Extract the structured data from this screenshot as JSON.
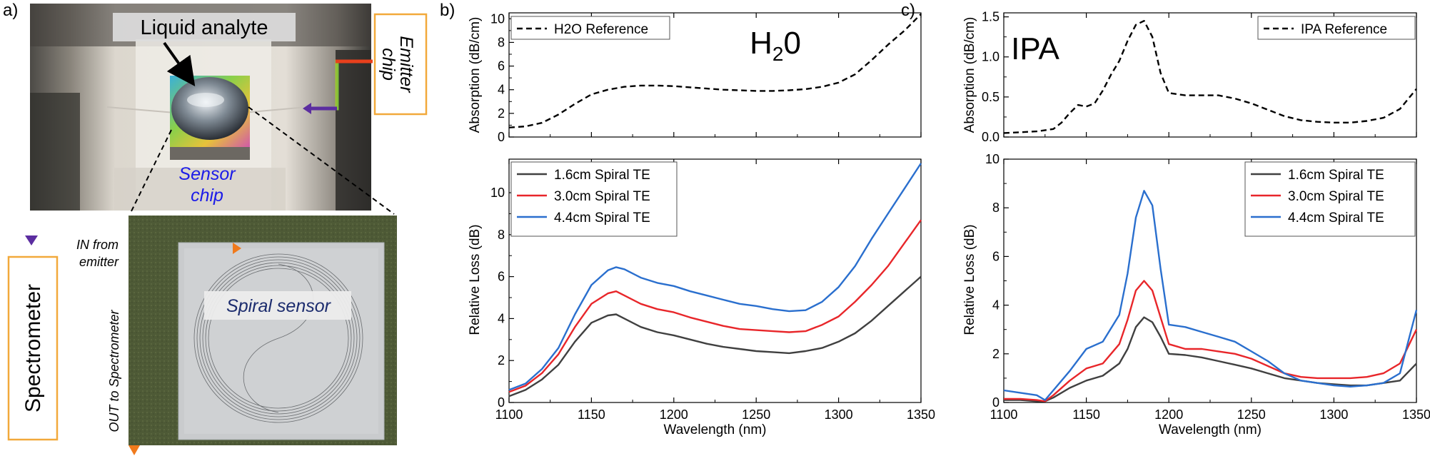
{
  "panel_labels": {
    "a": "a)",
    "b": "b)",
    "c": "c)"
  },
  "photo": {
    "liquid_label": "Liquid analyte",
    "emitter_label_1": "Emitter",
    "emitter_label_2": "chip",
    "sensor_label_1": "Sensor",
    "sensor_label_2": "chip",
    "spectrometer_label": "Spectrometer",
    "in_label_1": "IN from",
    "in_label_2": "emitter",
    "out_label": "OUT to Spectrometer",
    "spiral_label": "Spiral sensor"
  },
  "chart_data": [
    {
      "id": "b_top",
      "type": "line",
      "title": "",
      "big_label": "H2O",
      "big_label_main": "H",
      "big_label_sub": "2",
      "big_label_end": "0",
      "xlabel": "",
      "ylabel": "Absorption (dB/cm)",
      "xlim": [
        1100,
        1350
      ],
      "ylim": [
        0,
        10.5
      ],
      "yticks": [
        0,
        2,
        4,
        6,
        8,
        10
      ],
      "ytick_labels": [
        "0",
        "2",
        "4",
        "6",
        "8",
        "10"
      ],
      "legend": "top-left",
      "series": [
        {
          "name": "H2O Reference",
          "color": "#000000",
          "dash": true,
          "x": [
            1100,
            1110,
            1120,
            1130,
            1140,
            1150,
            1160,
            1170,
            1180,
            1190,
            1200,
            1210,
            1220,
            1230,
            1240,
            1250,
            1260,
            1270,
            1280,
            1290,
            1300,
            1310,
            1320,
            1330,
            1340,
            1350
          ],
          "y": [
            0.8,
            0.9,
            1.2,
            1.9,
            2.8,
            3.6,
            4.0,
            4.25,
            4.35,
            4.35,
            4.3,
            4.2,
            4.1,
            4.0,
            3.95,
            3.9,
            3.9,
            3.95,
            4.05,
            4.25,
            4.6,
            5.3,
            6.5,
            7.8,
            9.0,
            10.4
          ]
        }
      ]
    },
    {
      "id": "b_bottom",
      "type": "line",
      "title": "",
      "xlabel": "Wavelength (nm)",
      "ylabel": "Relative Loss (dB)",
      "xlim": [
        1100,
        1350
      ],
      "ylim": [
        0,
        11.6
      ],
      "xticks": [
        1100,
        1150,
        1200,
        1250,
        1300,
        1350
      ],
      "xtick_labels": [
        "1100",
        "1150",
        "1200",
        "1250",
        "1300",
        "1350"
      ],
      "yticks": [
        0,
        2,
        4,
        6,
        8,
        10
      ],
      "ytick_labels": [
        "0",
        "2",
        "4",
        "6",
        "8",
        "10"
      ],
      "legend": "top-left",
      "series": [
        {
          "name": "1.6cm Spiral TE",
          "color": "#404040",
          "x": [
            1100,
            1110,
            1120,
            1130,
            1140,
            1150,
            1160,
            1165,
            1170,
            1180,
            1190,
            1200,
            1210,
            1220,
            1230,
            1240,
            1250,
            1260,
            1270,
            1280,
            1290,
            1300,
            1310,
            1320,
            1330,
            1340,
            1350
          ],
          "y": [
            0.3,
            0.6,
            1.1,
            1.8,
            2.9,
            3.8,
            4.15,
            4.2,
            4.0,
            3.6,
            3.35,
            3.2,
            3.0,
            2.8,
            2.65,
            2.55,
            2.45,
            2.4,
            2.35,
            2.45,
            2.6,
            2.9,
            3.3,
            3.9,
            4.6,
            5.3,
            6.0
          ]
        },
        {
          "name": "3.0cm Spiral TE",
          "color": "#e8262a",
          "x": [
            1100,
            1110,
            1120,
            1130,
            1140,
            1150,
            1160,
            1165,
            1170,
            1180,
            1190,
            1200,
            1210,
            1220,
            1230,
            1240,
            1250,
            1260,
            1270,
            1280,
            1290,
            1300,
            1310,
            1320,
            1330,
            1340,
            1350
          ],
          "y": [
            0.5,
            0.8,
            1.4,
            2.3,
            3.6,
            4.7,
            5.2,
            5.3,
            5.1,
            4.7,
            4.45,
            4.3,
            4.05,
            3.85,
            3.65,
            3.5,
            3.45,
            3.4,
            3.35,
            3.4,
            3.7,
            4.1,
            4.8,
            5.6,
            6.5,
            7.6,
            8.7
          ]
        },
        {
          "name": "4.4cm Spiral TE",
          "color": "#2a6fce",
          "x": [
            1100,
            1110,
            1120,
            1130,
            1140,
            1150,
            1160,
            1165,
            1170,
            1180,
            1190,
            1200,
            1210,
            1220,
            1230,
            1240,
            1250,
            1260,
            1270,
            1280,
            1290,
            1300,
            1310,
            1320,
            1330,
            1340,
            1350
          ],
          "y": [
            0.6,
            0.9,
            1.6,
            2.6,
            4.2,
            5.6,
            6.3,
            6.45,
            6.35,
            5.95,
            5.7,
            5.55,
            5.3,
            5.1,
            4.9,
            4.7,
            4.6,
            4.45,
            4.35,
            4.4,
            4.8,
            5.5,
            6.5,
            7.8,
            9.0,
            10.2,
            11.4
          ]
        }
      ]
    },
    {
      "id": "c_top",
      "type": "line",
      "title": "",
      "big_label": "IPA",
      "xlabel": "",
      "ylabel": "Absorption (dB/cm)",
      "xlim": [
        1100,
        1350
      ],
      "ylim": [
        0,
        1.55
      ],
      "yticks": [
        0.0,
        0.5,
        1.0,
        1.5
      ],
      "ytick_labels": [
        "0.0",
        "0.5",
        "1.0",
        "1.5"
      ],
      "legend": "top-right",
      "series": [
        {
          "name": "IPA Reference",
          "color": "#000000",
          "dash": true,
          "x": [
            1100,
            1110,
            1120,
            1130,
            1135,
            1140,
            1145,
            1150,
            1155,
            1160,
            1165,
            1170,
            1175,
            1180,
            1185,
            1190,
            1195,
            1200,
            1210,
            1220,
            1230,
            1240,
            1250,
            1260,
            1270,
            1280,
            1290,
            1300,
            1310,
            1320,
            1330,
            1340,
            1350
          ],
          "y": [
            0.05,
            0.06,
            0.07,
            0.1,
            0.18,
            0.3,
            0.4,
            0.38,
            0.42,
            0.58,
            0.78,
            0.95,
            1.2,
            1.4,
            1.45,
            1.25,
            0.8,
            0.55,
            0.52,
            0.52,
            0.52,
            0.48,
            0.42,
            0.34,
            0.26,
            0.21,
            0.19,
            0.18,
            0.18,
            0.2,
            0.24,
            0.35,
            0.6
          ]
        }
      ]
    },
    {
      "id": "c_bottom",
      "type": "line",
      "title": "",
      "xlabel": "Wavelength (nm)",
      "ylabel": "Relative Loss (dB)",
      "xlim": [
        1100,
        1350
      ],
      "ylim": [
        0,
        10
      ],
      "xticks": [
        1100,
        1150,
        1200,
        1250,
        1300,
        1350
      ],
      "xtick_labels": [
        "1100",
        "1150",
        "1200",
        "1250",
        "1300",
        "1350"
      ],
      "yticks": [
        0,
        2,
        4,
        6,
        8,
        10
      ],
      "ytick_labels": [
        "0",
        "2",
        "4",
        "6",
        "8",
        "10"
      ],
      "legend": "top-right",
      "series": [
        {
          "name": "1.6cm Spiral TE",
          "color": "#404040",
          "x": [
            1100,
            1110,
            1120,
            1125,
            1130,
            1140,
            1150,
            1160,
            1170,
            1175,
            1180,
            1185,
            1190,
            1195,
            1200,
            1210,
            1220,
            1230,
            1240,
            1250,
            1260,
            1270,
            1280,
            1290,
            1300,
            1310,
            1320,
            1330,
            1340,
            1350
          ],
          "y": [
            0.1,
            0.1,
            0.05,
            0.05,
            0.2,
            0.6,
            0.9,
            1.1,
            1.6,
            2.2,
            3.1,
            3.5,
            3.3,
            2.7,
            2.0,
            1.95,
            1.85,
            1.7,
            1.55,
            1.4,
            1.2,
            1.0,
            0.9,
            0.8,
            0.75,
            0.7,
            0.7,
            0.8,
            0.9,
            1.6
          ]
        },
        {
          "name": "3.0cm Spiral TE",
          "color": "#e8262a",
          "x": [
            1100,
            1110,
            1120,
            1125,
            1130,
            1140,
            1150,
            1160,
            1170,
            1175,
            1180,
            1185,
            1190,
            1195,
            1200,
            1210,
            1220,
            1230,
            1240,
            1250,
            1260,
            1270,
            1280,
            1290,
            1300,
            1310,
            1320,
            1330,
            1340,
            1350
          ],
          "y": [
            0.15,
            0.15,
            0.1,
            0.05,
            0.3,
            0.9,
            1.4,
            1.6,
            2.4,
            3.4,
            4.6,
            5.0,
            4.6,
            3.5,
            2.4,
            2.2,
            2.2,
            2.1,
            2.0,
            1.8,
            1.5,
            1.2,
            1.05,
            1.0,
            1.0,
            1.0,
            1.05,
            1.2,
            1.6,
            3.0
          ]
        },
        {
          "name": "4.4cm Spiral TE",
          "color": "#2a6fce",
          "x": [
            1100,
            1110,
            1120,
            1125,
            1130,
            1140,
            1150,
            1160,
            1170,
            1175,
            1180,
            1185,
            1190,
            1195,
            1200,
            1210,
            1220,
            1230,
            1240,
            1250,
            1260,
            1270,
            1280,
            1290,
            1300,
            1310,
            1320,
            1330,
            1340,
            1350
          ],
          "y": [
            0.5,
            0.4,
            0.3,
            0.1,
            0.5,
            1.3,
            2.2,
            2.5,
            3.6,
            5.3,
            7.6,
            8.7,
            8.1,
            5.5,
            3.2,
            3.1,
            2.9,
            2.7,
            2.5,
            2.1,
            1.7,
            1.2,
            0.9,
            0.8,
            0.7,
            0.65,
            0.7,
            0.8,
            1.2,
            3.8
          ]
        }
      ]
    }
  ]
}
